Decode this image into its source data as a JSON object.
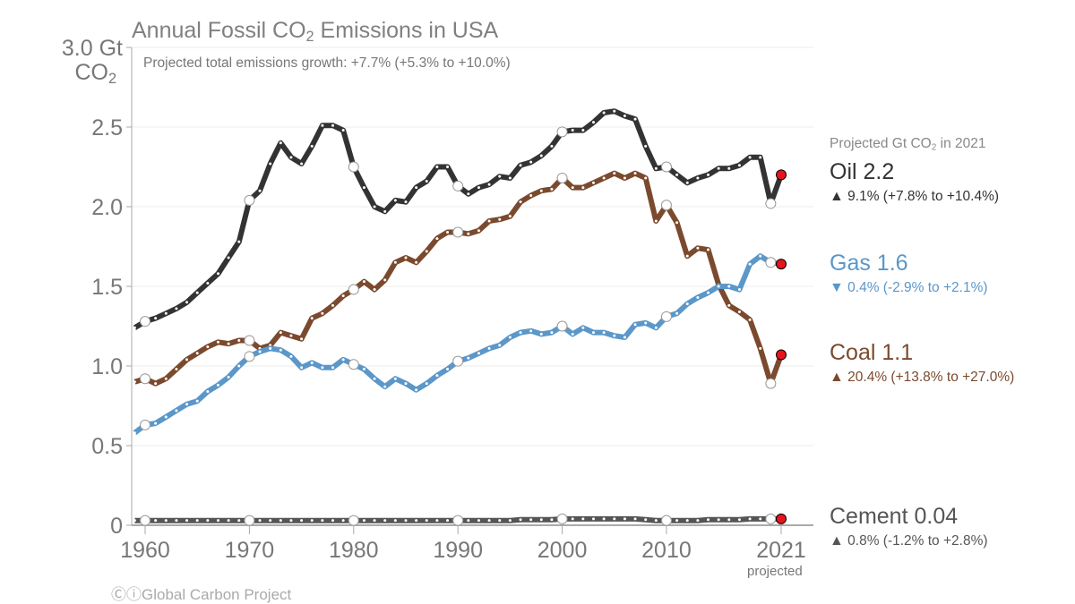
{
  "chart_data": {
    "type": "line",
    "title": "Annual Fossil CO2 Emissions in USA",
    "subtitle": "Projected total emissions growth: +7.7% (+5.3% to +10.0%)",
    "ylabel": "Gt CO2",
    "ylim": [
      0,
      3.0
    ],
    "yticks": [
      {
        "value": 0,
        "label": "0"
      },
      {
        "value": 0.5,
        "label": "0.5"
      },
      {
        "value": 1.0,
        "label": "1.0"
      },
      {
        "value": 1.5,
        "label": "1.5"
      },
      {
        "value": 2.0,
        "label": "2.0"
      },
      {
        "value": 2.5,
        "label": "2.5"
      },
      {
        "value": 3.0,
        "label": "3.0 Gt"
      }
    ],
    "ylabel_sub": "CO2",
    "xlim": [
      1959,
      2021
    ],
    "xticks": [
      {
        "value": 1960,
        "label": "1960"
      },
      {
        "value": 1970,
        "label": "1970"
      },
      {
        "value": 1980,
        "label": "1980"
      },
      {
        "value": 1990,
        "label": "1990"
      },
      {
        "value": 2000,
        "label": "2000"
      },
      {
        "value": 2010,
        "label": "2010"
      },
      {
        "value": 2021,
        "label": "2021"
      }
    ],
    "projected_label": "projected",
    "x_start": 1959,
    "series": [
      {
        "name": "Oil",
        "color": "#333333",
        "values": [
          1.24,
          1.28,
          1.3,
          1.33,
          1.36,
          1.4,
          1.46,
          1.52,
          1.58,
          1.68,
          1.78,
          2.04,
          2.1,
          2.27,
          2.4,
          2.31,
          2.27,
          2.38,
          2.51,
          2.51,
          2.48,
          2.25,
          2.12,
          2.0,
          1.97,
          2.04,
          2.03,
          2.12,
          2.16,
          2.25,
          2.25,
          2.13,
          2.08,
          2.12,
          2.14,
          2.19,
          2.18,
          2.26,
          2.28,
          2.32,
          2.38,
          2.47,
          2.48,
          2.48,
          2.53,
          2.59,
          2.6,
          2.57,
          2.55,
          2.38,
          2.24,
          2.25,
          2.2,
          2.15,
          2.18,
          2.2,
          2.24,
          2.24,
          2.26,
          2.31,
          2.31,
          2.02,
          2.2
        ]
      },
      {
        "name": "Coal",
        "color": "#7b4a2e",
        "values": [
          0.9,
          0.92,
          0.89,
          0.92,
          0.98,
          1.04,
          1.08,
          1.12,
          1.15,
          1.14,
          1.16,
          1.16,
          1.11,
          1.13,
          1.21,
          1.19,
          1.17,
          1.3,
          1.33,
          1.38,
          1.44,
          1.48,
          1.53,
          1.48,
          1.54,
          1.65,
          1.68,
          1.65,
          1.72,
          1.8,
          1.84,
          1.84,
          1.83,
          1.85,
          1.91,
          1.92,
          1.94,
          2.03,
          2.07,
          2.1,
          2.11,
          2.18,
          2.12,
          2.12,
          2.15,
          2.18,
          2.21,
          2.18,
          2.21,
          2.18,
          1.91,
          2.01,
          1.9,
          1.69,
          1.74,
          1.73,
          1.51,
          1.38,
          1.34,
          1.29,
          1.11,
          0.89,
          1.07
        ]
      },
      {
        "name": "Gas",
        "color": "#5b97c9",
        "values": [
          0.58,
          0.63,
          0.64,
          0.68,
          0.72,
          0.76,
          0.78,
          0.84,
          0.88,
          0.93,
          1.0,
          1.06,
          1.09,
          1.11,
          1.1,
          1.06,
          0.99,
          1.02,
          0.99,
          0.99,
          1.04,
          1.01,
          0.98,
          0.92,
          0.87,
          0.92,
          0.89,
          0.85,
          0.89,
          0.94,
          0.98,
          1.03,
          1.05,
          1.08,
          1.11,
          1.13,
          1.18,
          1.21,
          1.22,
          1.2,
          1.21,
          1.25,
          1.2,
          1.24,
          1.21,
          1.21,
          1.19,
          1.18,
          1.26,
          1.27,
          1.24,
          1.31,
          1.33,
          1.39,
          1.43,
          1.46,
          1.5,
          1.5,
          1.48,
          1.64,
          1.69,
          1.65,
          1.64
        ]
      },
      {
        "name": "Cement",
        "color": "#555555",
        "values": [
          0.03,
          0.03,
          0.03,
          0.03,
          0.03,
          0.03,
          0.03,
          0.03,
          0.03,
          0.03,
          0.03,
          0.03,
          0.03,
          0.03,
          0.03,
          0.03,
          0.03,
          0.03,
          0.03,
          0.03,
          0.03,
          0.03,
          0.03,
          0.03,
          0.03,
          0.03,
          0.03,
          0.03,
          0.03,
          0.03,
          0.03,
          0.03,
          0.03,
          0.03,
          0.03,
          0.03,
          0.03,
          0.035,
          0.035,
          0.035,
          0.035,
          0.04,
          0.04,
          0.04,
          0.04,
          0.04,
          0.04,
          0.04,
          0.04,
          0.035,
          0.03,
          0.03,
          0.03,
          0.03,
          0.03,
          0.035,
          0.035,
          0.035,
          0.035,
          0.04,
          0.04,
          0.04,
          0.04
        ]
      }
    ],
    "legend": {
      "header": "Projected Gt CO2 in 2021",
      "items": [
        {
          "label": "Oil 2.2",
          "change": "9.1% (+7.8% to +10.4%)",
          "direction": "up",
          "color": "#333333"
        },
        {
          "label": "Gas 1.6",
          "change": "0.4% (-2.9% to +2.1%)",
          "direction": "down",
          "color": "#5b97c9"
        },
        {
          "label": "Coal 1.1",
          "change": "20.4% (+13.8% to +27.0%)",
          "direction": "up",
          "color": "#7b4a2e"
        },
        {
          "label": "Cement 0.04",
          "change": "0.8% (-1.2% to +2.8%)",
          "direction": "up",
          "color": "#555555"
        }
      ],
      "placement": "right"
    },
    "projection_marker_color": "#e8141c",
    "grid": true
  },
  "credit": "Global Carbon Project"
}
